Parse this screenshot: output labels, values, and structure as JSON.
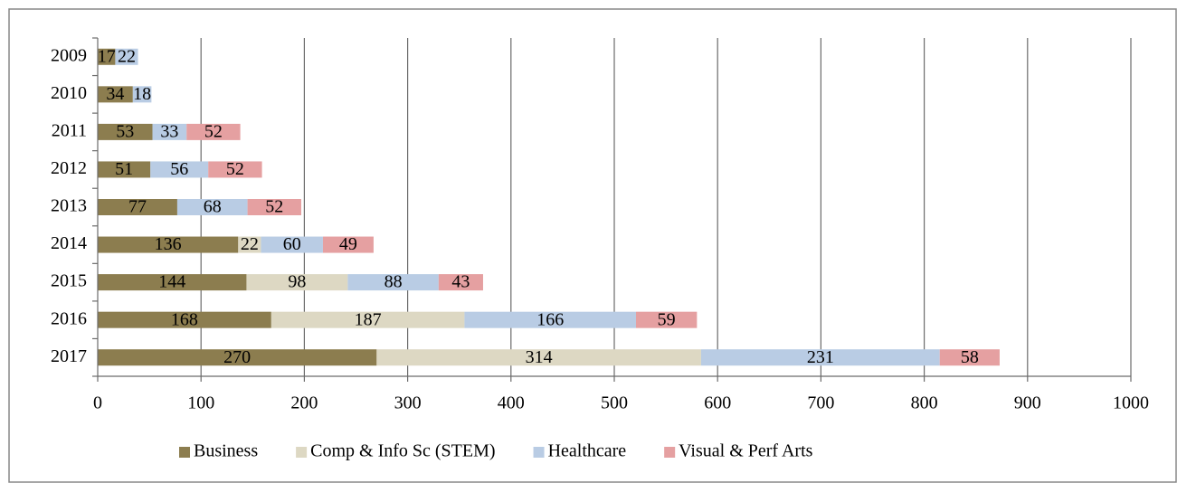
{
  "chart_data": {
    "type": "stacked-bar",
    "orientation": "horizontal",
    "categories": [
      "2009",
      "2010",
      "2011",
      "2012",
      "2013",
      "2014",
      "2015",
      "2016",
      "2017"
    ],
    "series": [
      {
        "name": "Business",
        "color": "#8c7d4f",
        "values": [
          17,
          34,
          53,
          51,
          77,
          136,
          144,
          168,
          270
        ]
      },
      {
        "name": "Comp & Info Sc (STEM)",
        "color": "#ddd8c3",
        "values": [
          null,
          null,
          null,
          null,
          null,
          22,
          98,
          187,
          314
        ]
      },
      {
        "name": "Healthcare",
        "color": "#b9cce4",
        "values": [
          22,
          18,
          33,
          56,
          68,
          60,
          88,
          166,
          231
        ]
      },
      {
        "name": "Visual & Perf Arts",
        "color": "#e5a0a1",
        "values": [
          null,
          null,
          52,
          52,
          52,
          49,
          43,
          59,
          58
        ]
      }
    ],
    "xlim": [
      0,
      1000
    ],
    "xticks": [
      0,
      100,
      200,
      300,
      400,
      500,
      600,
      700,
      800,
      900,
      1000
    ],
    "grid": true,
    "legend": "bottom"
  }
}
